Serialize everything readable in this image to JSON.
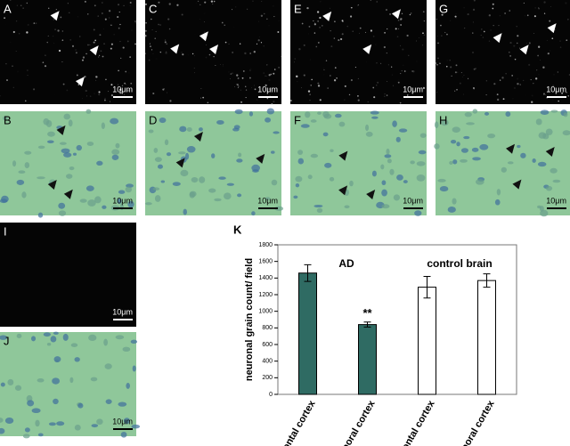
{
  "panels": [
    {
      "label": "A",
      "scale": "10μm"
    },
    {
      "label": "C",
      "scale": "10μm"
    },
    {
      "label": "E",
      "scale": "10μm"
    },
    {
      "label": "G",
      "scale": "10μm"
    },
    {
      "label": "B",
      "scale": "10μm"
    },
    {
      "label": "D",
      "scale": "10μm"
    },
    {
      "label": "F",
      "scale": "10μm"
    },
    {
      "label": "H",
      "scale": "10μm"
    },
    {
      "label": "I",
      "scale": "10μm"
    },
    {
      "label": "J",
      "scale": "10μm"
    }
  ],
  "chart_data": {
    "type": "bar",
    "panel_label": "K",
    "annotation": "**",
    "y_label": "neuronal grain count/ field",
    "categories": [
      "frontal cortex",
      "temporal cortex",
      "frontal cortex",
      "temporal cortex"
    ],
    "series": [
      {
        "name": "AD",
        "color": "#2f6b63",
        "values": [
          1460,
          840,
          null,
          null
        ],
        "errors": [
          100,
          30,
          null,
          null
        ]
      },
      {
        "name": "control brain",
        "color": "#ffffff",
        "values": [
          null,
          null,
          1290,
          1370
        ],
        "errors": [
          null,
          null,
          130,
          80
        ]
      }
    ],
    "ylim": [
      0,
      1800
    ],
    "yticks": [
      0,
      200,
      400,
      600,
      800,
      1000,
      1200,
      1400,
      1600,
      1800
    ]
  }
}
